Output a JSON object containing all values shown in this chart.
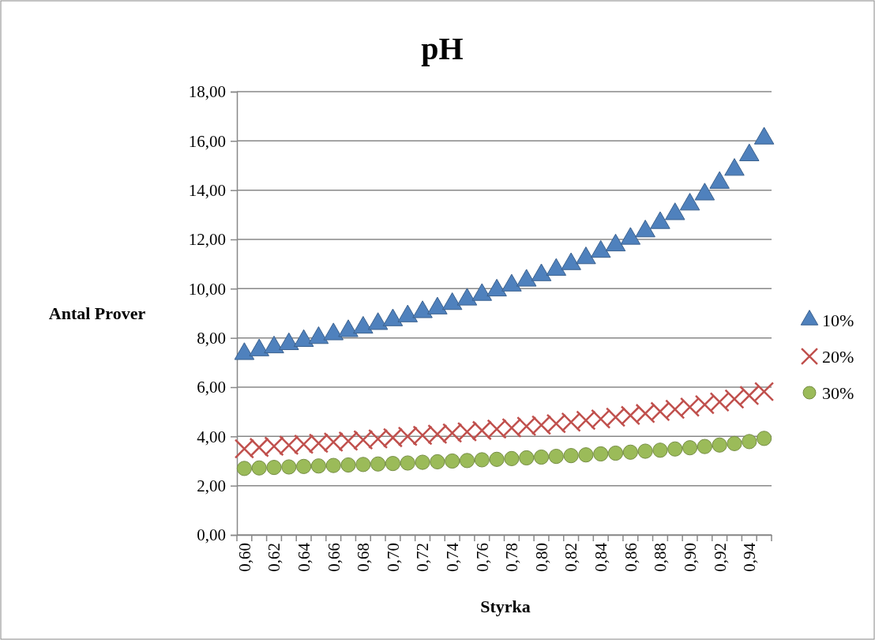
{
  "chart_data": {
    "type": "scatter",
    "title": "pH",
    "xlabel": "Styrka",
    "ylabel": "Antal Prover",
    "categories": [
      "0,60",
      null,
      "0,62",
      null,
      "0,64",
      null,
      "0,66",
      null,
      "0,68",
      null,
      "0,70",
      null,
      "0,72",
      null,
      "0,74",
      null,
      "0,76",
      null,
      "0,78",
      null,
      "0,80",
      null,
      "0,82",
      null,
      "0,84",
      null,
      "0,86",
      null,
      "0,88",
      null,
      "0,90",
      null,
      "0,92",
      null,
      "0,94",
      null
    ],
    "ylim": [
      0,
      18
    ],
    "yticks": [
      {
        "value": 0,
        "label": "0,00"
      },
      {
        "value": 2,
        "label": "2,00"
      },
      {
        "value": 4,
        "label": "4,00"
      },
      {
        "value": 6,
        "label": "6,00"
      },
      {
        "value": 8,
        "label": "8,00"
      },
      {
        "value": 10,
        "label": "10,00"
      },
      {
        "value": 12,
        "label": "12,00"
      },
      {
        "value": 14,
        "label": "14,00"
      },
      {
        "value": 16,
        "label": "16,00"
      },
      {
        "value": 18,
        "label": "18,00"
      }
    ],
    "grid": "y",
    "legend": "right",
    "series": [
      {
        "name": "10%",
        "color": "#4f81bd",
        "marker": "triangle",
        "values": [
          7.35,
          7.5,
          7.62,
          7.75,
          7.88,
          8.0,
          8.15,
          8.28,
          8.42,
          8.57,
          8.72,
          8.88,
          9.05,
          9.2,
          9.38,
          9.56,
          9.75,
          9.93,
          10.13,
          10.33,
          10.55,
          10.77,
          11.0,
          11.24,
          11.5,
          11.76,
          12.03,
          12.33,
          12.67,
          13.03,
          13.42,
          13.83,
          14.3,
          14.83,
          15.42,
          16.1
        ]
      },
      {
        "name": "20%",
        "color": "#c0504d",
        "marker": "cross",
        "values": [
          3.5,
          3.55,
          3.6,
          3.64,
          3.68,
          3.72,
          3.77,
          3.81,
          3.86,
          3.9,
          3.95,
          4.0,
          4.04,
          4.09,
          4.14,
          4.19,
          4.24,
          4.3,
          4.35,
          4.41,
          4.46,
          4.52,
          4.58,
          4.65,
          4.71,
          4.78,
          4.85,
          4.93,
          5.01,
          5.1,
          5.19,
          5.29,
          5.4,
          5.52,
          5.66,
          5.82
        ]
      },
      {
        "name": "30%",
        "color": "#9bbb59",
        "marker": "circle",
        "values": [
          2.7,
          2.72,
          2.74,
          2.76,
          2.78,
          2.8,
          2.82,
          2.84,
          2.86,
          2.88,
          2.9,
          2.92,
          2.95,
          2.97,
          3.0,
          3.02,
          3.05,
          3.07,
          3.1,
          3.13,
          3.16,
          3.19,
          3.22,
          3.25,
          3.29,
          3.32,
          3.36,
          3.4,
          3.44,
          3.49,
          3.54,
          3.59,
          3.65,
          3.71,
          3.79,
          3.92
        ]
      }
    ]
  }
}
